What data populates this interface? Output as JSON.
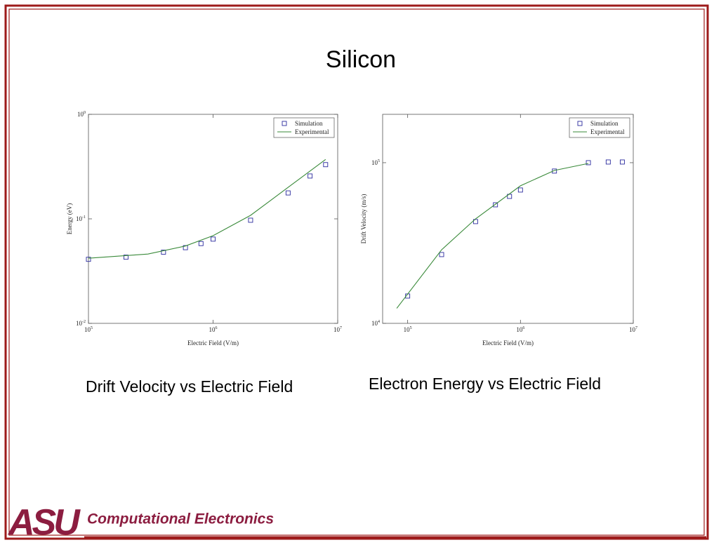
{
  "title": "Silicon",
  "chart_data": [
    {
      "type": "scatter",
      "xscale": "log",
      "yscale": "log",
      "legend": "upper right",
      "xlabel": "Electric Field (V/m)",
      "ylabel": "Energy (eV)",
      "xlim": [
        100000,
        10000000
      ],
      "ylim": [
        0.01,
        1
      ],
      "xticks": [
        {
          "value": 100000,
          "label": "10^5"
        },
        {
          "value": 1000000,
          "label": "10^6"
        },
        {
          "value": 10000000,
          "label": "10^7"
        }
      ],
      "yticks": [
        {
          "value": 0.01,
          "label": "10^-2"
        },
        {
          "value": 0.1,
          "label": "10^-1"
        },
        {
          "value": 1,
          "label": "10^0"
        }
      ],
      "series": [
        {
          "name": "Simulation",
          "mode": "markers",
          "color": "#2b2b9e",
          "x": [
            100000,
            200000,
            400000,
            600000,
            800000,
            1000000,
            2000000,
            4000000,
            6000000,
            8000000
          ],
          "values": [
            0.041,
            0.043,
            0.048,
            0.053,
            0.058,
            0.064,
            0.097,
            0.177,
            0.257,
            0.33
          ]
        },
        {
          "name": "Experimental",
          "mode": "line",
          "color": "#3a8a3a",
          "x": [
            100000,
            300000,
            600000,
            1000000,
            2000000,
            4000000,
            8000000
          ],
          "values": [
            0.042,
            0.046,
            0.055,
            0.069,
            0.108,
            0.2,
            0.37
          ]
        }
      ]
    },
    {
      "type": "scatter",
      "xscale": "log",
      "yscale": "log",
      "legend": "upper right",
      "xlabel": "Electric Field (V/m)",
      "ylabel": "Drift Velocity (m/s)",
      "xlim": [
        60000,
        10000000
      ],
      "ylim": [
        10000,
        200000
      ],
      "xticks": [
        {
          "value": 100000,
          "label": "10^5"
        },
        {
          "value": 1000000,
          "label": "10^6"
        },
        {
          "value": 10000000,
          "label": "10^7"
        }
      ],
      "yticks": [
        {
          "value": 10000,
          "label": "10^4"
        },
        {
          "value": 100000,
          "label": "10^5"
        }
      ],
      "series": [
        {
          "name": "Simulation",
          "mode": "markers",
          "color": "#2b2b9e",
          "x": [
            100000,
            200000,
            400000,
            600000,
            800000,
            1000000,
            2000000,
            4000000,
            6000000,
            8000000
          ],
          "values": [
            14800,
            26800,
            43000,
            54700,
            61700,
            67600,
            88700,
            100000,
            101000,
            101000
          ]
        },
        {
          "name": "Experimental",
          "mode": "line",
          "color": "#3a8a3a",
          "x": [
            80000,
            200000,
            400000,
            1000000,
            2000000,
            4000000
          ],
          "values": [
            12400,
            28700,
            44700,
            71800,
            89500,
            99000
          ]
        }
      ]
    }
  ],
  "captions": [
    "Drift Velocity vs Electric Field",
    "Electron Energy vs Electric Field"
  ],
  "footer": {
    "logo": "ASU",
    "text": "Computational Electronics"
  }
}
